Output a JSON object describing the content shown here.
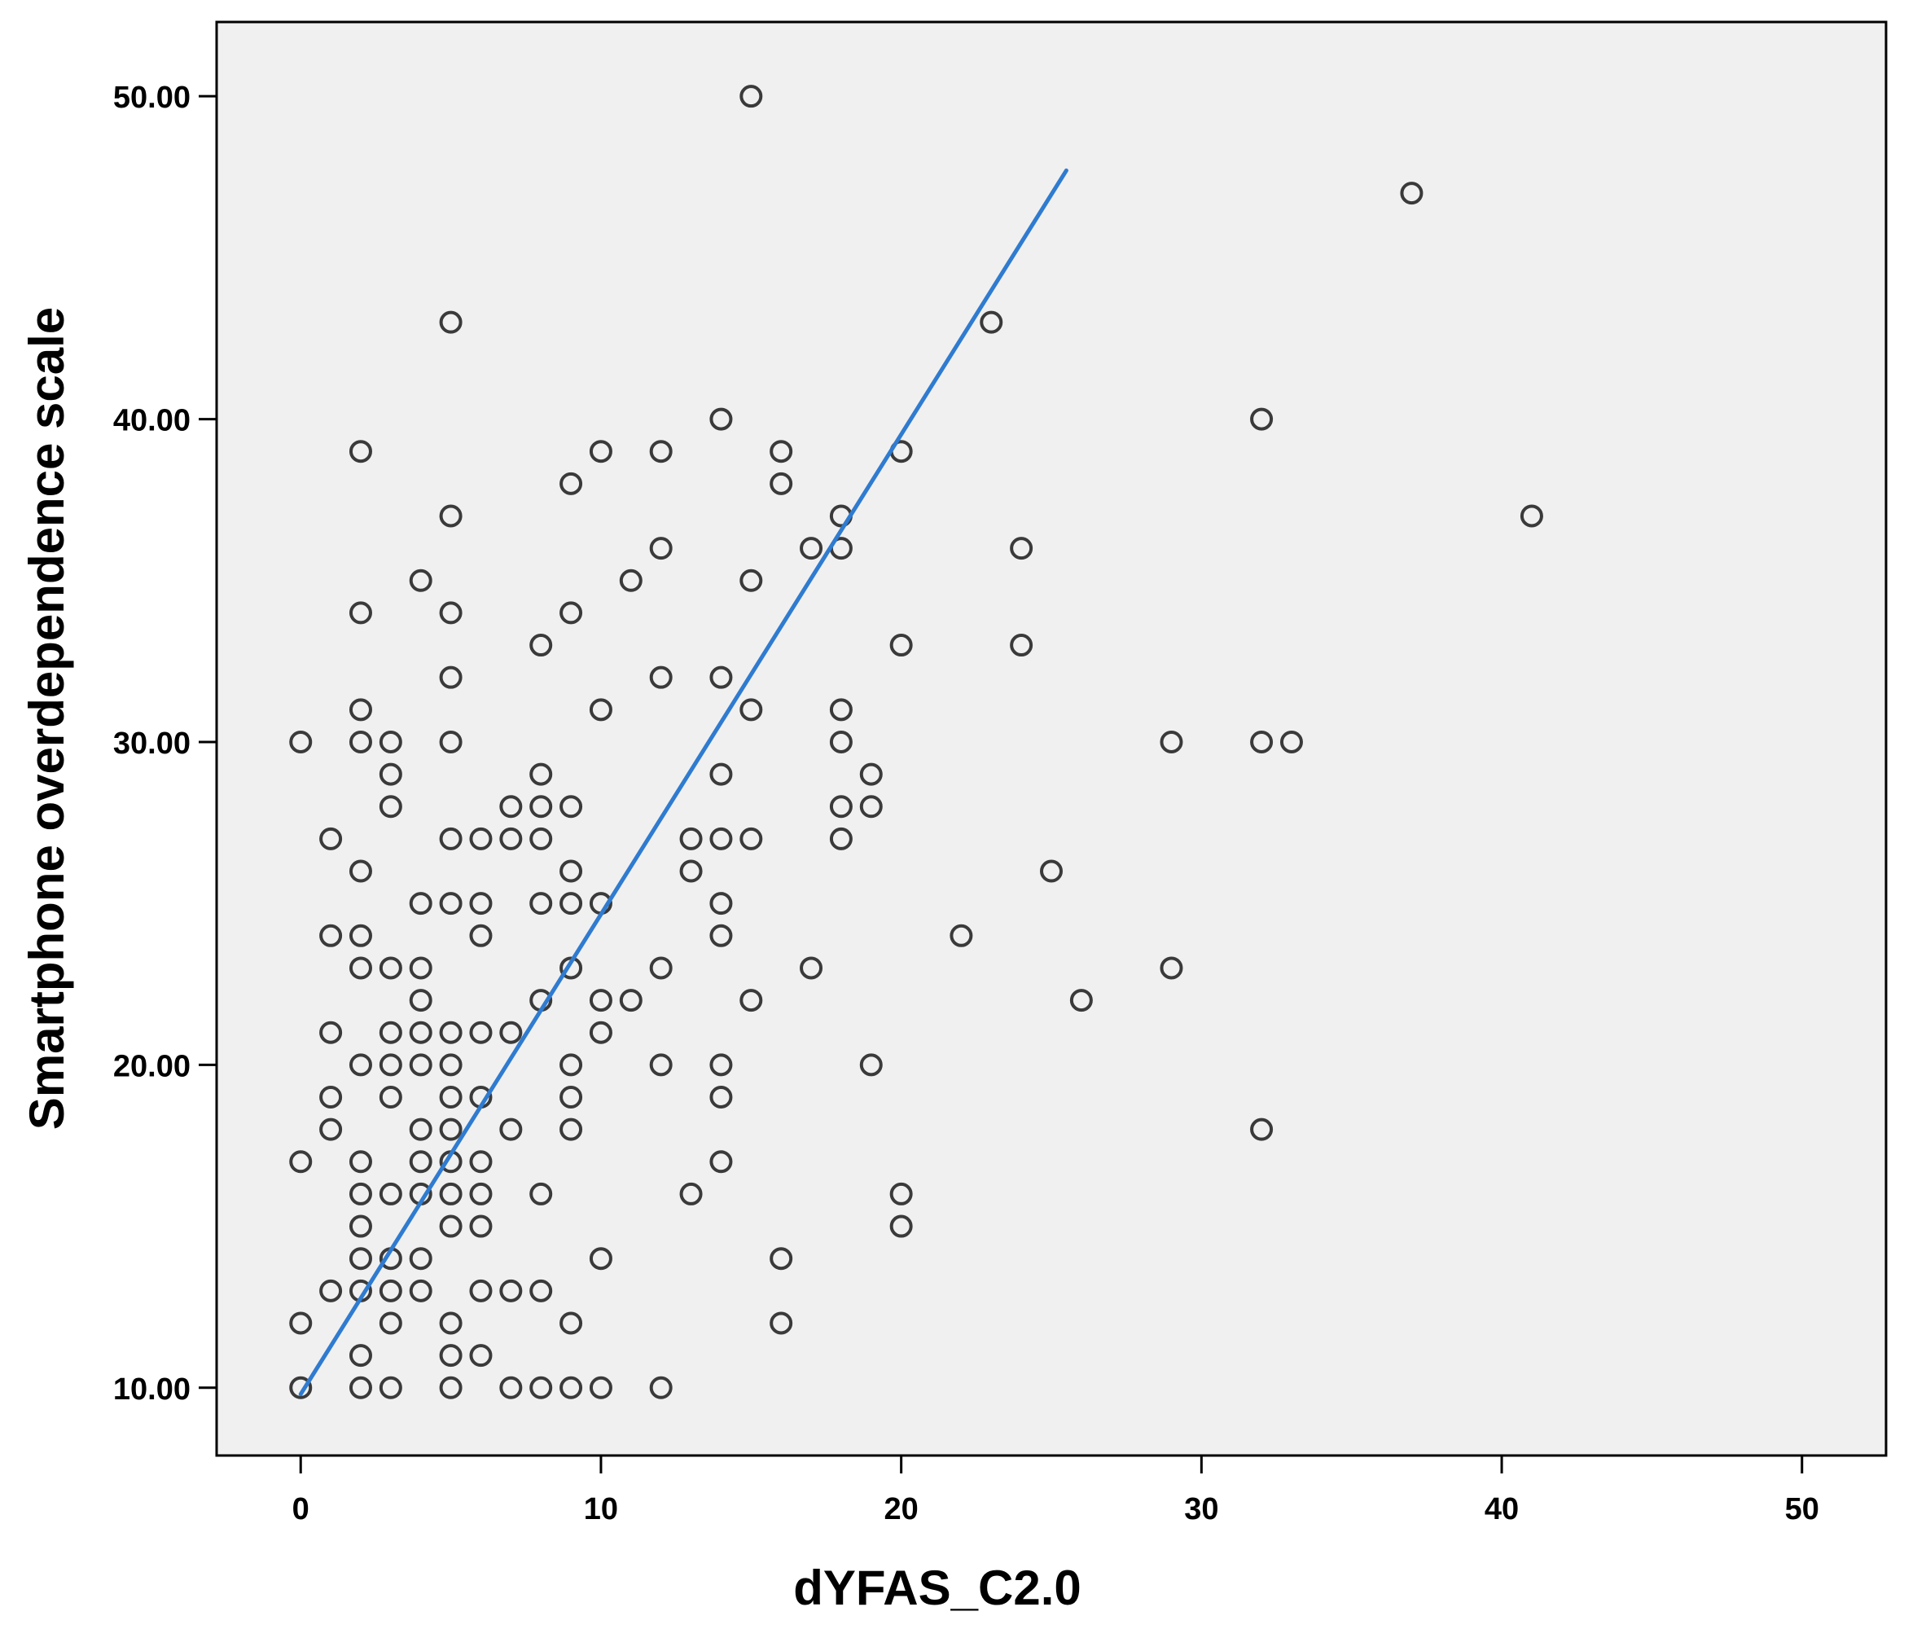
{
  "chart_data": {
    "type": "scatter",
    "title": "",
    "xlabel": "dYFAS_C2.0",
    "ylabel": "Smartphone overdependence scale",
    "xlim": [
      -2.8,
      52.8
    ],
    "ylim": [
      7.9,
      52.3
    ],
    "xticks": [
      {
        "value": 0,
        "label": "0"
      },
      {
        "value": 10,
        "label": "10"
      },
      {
        "value": 20,
        "label": "20"
      },
      {
        "value": 30,
        "label": "30"
      },
      {
        "value": 40,
        "label": "40"
      },
      {
        "value": 50,
        "label": "50"
      }
    ],
    "yticks": [
      {
        "value": 10,
        "label": "10.00"
      },
      {
        "value": 20,
        "label": "20.00"
      },
      {
        "value": 30,
        "label": "30.00"
      },
      {
        "value": 40,
        "label": "40.00"
      },
      {
        "value": 50,
        "label": "50.00"
      }
    ],
    "grid": false,
    "legend": "none",
    "colors": {
      "plot_background": "#f0f0f0",
      "marker_stroke": "#3a3a3a",
      "fit_line": "#2f7bd0",
      "frame": "#000000"
    },
    "series": [
      {
        "marker": "open-circle",
        "points": [
          [
            15,
            50
          ],
          [
            37,
            47
          ],
          [
            5,
            43
          ],
          [
            23,
            43
          ],
          [
            14,
            40
          ],
          [
            32,
            40
          ],
          [
            2,
            39
          ],
          [
            10,
            39
          ],
          [
            12,
            39
          ],
          [
            16,
            39
          ],
          [
            20,
            39
          ],
          [
            9,
            38
          ],
          [
            16,
            38
          ],
          [
            5,
            37
          ],
          [
            18,
            37
          ],
          [
            41,
            37
          ],
          [
            12,
            36
          ],
          [
            17,
            36
          ],
          [
            18,
            36
          ],
          [
            24,
            36
          ],
          [
            4,
            35
          ],
          [
            11,
            35
          ],
          [
            15,
            35
          ],
          [
            2,
            34
          ],
          [
            5,
            34
          ],
          [
            9,
            34
          ],
          [
            8,
            33
          ],
          [
            20,
            33
          ],
          [
            24,
            33
          ],
          [
            5,
            32
          ],
          [
            12,
            32
          ],
          [
            14,
            32
          ],
          [
            2,
            31
          ],
          [
            10,
            31
          ],
          [
            15,
            31
          ],
          [
            18,
            31
          ],
          [
            0,
            30
          ],
          [
            2,
            30
          ],
          [
            3,
            30
          ],
          [
            5,
            30
          ],
          [
            18,
            30
          ],
          [
            29,
            30
          ],
          [
            32,
            30
          ],
          [
            33,
            30
          ],
          [
            3,
            29
          ],
          [
            8,
            29
          ],
          [
            14,
            29
          ],
          [
            19,
            29
          ],
          [
            3,
            28
          ],
          [
            7,
            28
          ],
          [
            8,
            28
          ],
          [
            9,
            28
          ],
          [
            18,
            28
          ],
          [
            19,
            28
          ],
          [
            1,
            27
          ],
          [
            5,
            27
          ],
          [
            6,
            27
          ],
          [
            7,
            27
          ],
          [
            8,
            27
          ],
          [
            13,
            27
          ],
          [
            14,
            27
          ],
          [
            15,
            27
          ],
          [
            18,
            27
          ],
          [
            2,
            26
          ],
          [
            9,
            26
          ],
          [
            13,
            26
          ],
          [
            25,
            26
          ],
          [
            4,
            25
          ],
          [
            5,
            25
          ],
          [
            6,
            25
          ],
          [
            8,
            25
          ],
          [
            9,
            25
          ],
          [
            10,
            25
          ],
          [
            14,
            25
          ],
          [
            1,
            24
          ],
          [
            2,
            24
          ],
          [
            6,
            24
          ],
          [
            14,
            24
          ],
          [
            22,
            24
          ],
          [
            2,
            23
          ],
          [
            3,
            23
          ],
          [
            4,
            23
          ],
          [
            9,
            23
          ],
          [
            12,
            23
          ],
          [
            17,
            23
          ],
          [
            29,
            23
          ],
          [
            4,
            22
          ],
          [
            8,
            22
          ],
          [
            10,
            22
          ],
          [
            11,
            22
          ],
          [
            15,
            22
          ],
          [
            26,
            22
          ],
          [
            1,
            21
          ],
          [
            3,
            21
          ],
          [
            4,
            21
          ],
          [
            5,
            21
          ],
          [
            6,
            21
          ],
          [
            7,
            21
          ],
          [
            10,
            21
          ],
          [
            2,
            20
          ],
          [
            3,
            20
          ],
          [
            4,
            20
          ],
          [
            5,
            20
          ],
          [
            9,
            20
          ],
          [
            12,
            20
          ],
          [
            14,
            20
          ],
          [
            19,
            20
          ],
          [
            1,
            19
          ],
          [
            3,
            19
          ],
          [
            5,
            19
          ],
          [
            6,
            19
          ],
          [
            9,
            19
          ],
          [
            14,
            19
          ],
          [
            1,
            18
          ],
          [
            4,
            18
          ],
          [
            5,
            18
          ],
          [
            7,
            18
          ],
          [
            9,
            18
          ],
          [
            32,
            18
          ],
          [
            0,
            17
          ],
          [
            2,
            17
          ],
          [
            4,
            17
          ],
          [
            5,
            17
          ],
          [
            6,
            17
          ],
          [
            14,
            17
          ],
          [
            2,
            16
          ],
          [
            3,
            16
          ],
          [
            4,
            16
          ],
          [
            5,
            16
          ],
          [
            6,
            16
          ],
          [
            8,
            16
          ],
          [
            13,
            16
          ],
          [
            20,
            16
          ],
          [
            2,
            15
          ],
          [
            5,
            15
          ],
          [
            6,
            15
          ],
          [
            20,
            15
          ],
          [
            2,
            14
          ],
          [
            3,
            14
          ],
          [
            4,
            14
          ],
          [
            10,
            14
          ],
          [
            16,
            14
          ],
          [
            1,
            13
          ],
          [
            2,
            13
          ],
          [
            3,
            13
          ],
          [
            4,
            13
          ],
          [
            6,
            13
          ],
          [
            7,
            13
          ],
          [
            8,
            13
          ],
          [
            0,
            12
          ],
          [
            3,
            12
          ],
          [
            5,
            12
          ],
          [
            9,
            12
          ],
          [
            16,
            12
          ],
          [
            2,
            11
          ],
          [
            5,
            11
          ],
          [
            6,
            11
          ],
          [
            0,
            10
          ],
          [
            2,
            10
          ],
          [
            3,
            10
          ],
          [
            5,
            10
          ],
          [
            7,
            10
          ],
          [
            8,
            10
          ],
          [
            9,
            10
          ],
          [
            10,
            10
          ],
          [
            12,
            10
          ]
        ]
      }
    ],
    "fit_line": {
      "x": [
        0,
        25.5
      ],
      "y": [
        9.8,
        47.7
      ]
    }
  }
}
